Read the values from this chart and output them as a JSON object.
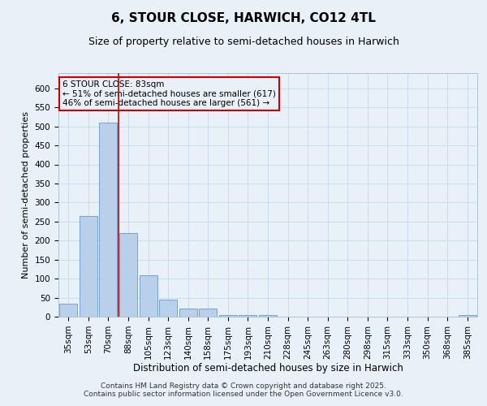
{
  "title": "6, STOUR CLOSE, HARWICH, CO12 4TL",
  "subtitle": "Size of property relative to semi-detached houses in Harwich",
  "xlabel": "Distribution of semi-detached houses by size in Harwich",
  "ylabel": "Number of semi-detached properties",
  "categories": [
    "35sqm",
    "53sqm",
    "70sqm",
    "88sqm",
    "105sqm",
    "123sqm",
    "140sqm",
    "158sqm",
    "175sqm",
    "193sqm",
    "210sqm",
    "228sqm",
    "245sqm",
    "263sqm",
    "280sqm",
    "298sqm",
    "315sqm",
    "333sqm",
    "350sqm",
    "368sqm",
    "385sqm"
  ],
  "values": [
    35,
    265,
    510,
    220,
    108,
    45,
    22,
    22,
    5,
    5,
    5,
    0,
    0,
    0,
    0,
    0,
    0,
    0,
    0,
    0,
    5
  ],
  "bar_color": "#b8d0ea",
  "bar_edge_color": "#6699cc",
  "grid_color": "#c8d8ea",
  "background_color": "#e8f0f8",
  "vline_color": "#cc0000",
  "annotation_line1": "6 STOUR CLOSE: 83sqm",
  "annotation_line2": "← 51% of semi-detached houses are smaller (617)",
  "annotation_line3": "46% of semi-detached houses are larger (561) →",
  "annotation_box_color": "#cc0000",
  "footer": "Contains HM Land Registry data © Crown copyright and database right 2025.\nContains public sector information licensed under the Open Government Licence v3.0.",
  "ylim": [
    0,
    640
  ],
  "yticks": [
    0,
    50,
    100,
    150,
    200,
    250,
    300,
    350,
    400,
    450,
    500,
    550,
    600
  ],
  "title_fontsize": 11,
  "subtitle_fontsize": 9,
  "xlabel_fontsize": 8.5,
  "ylabel_fontsize": 8,
  "tick_fontsize": 7.5,
  "annotation_fontsize": 7.5,
  "footer_fontsize": 6.5,
  "vline_pos": 2.5
}
